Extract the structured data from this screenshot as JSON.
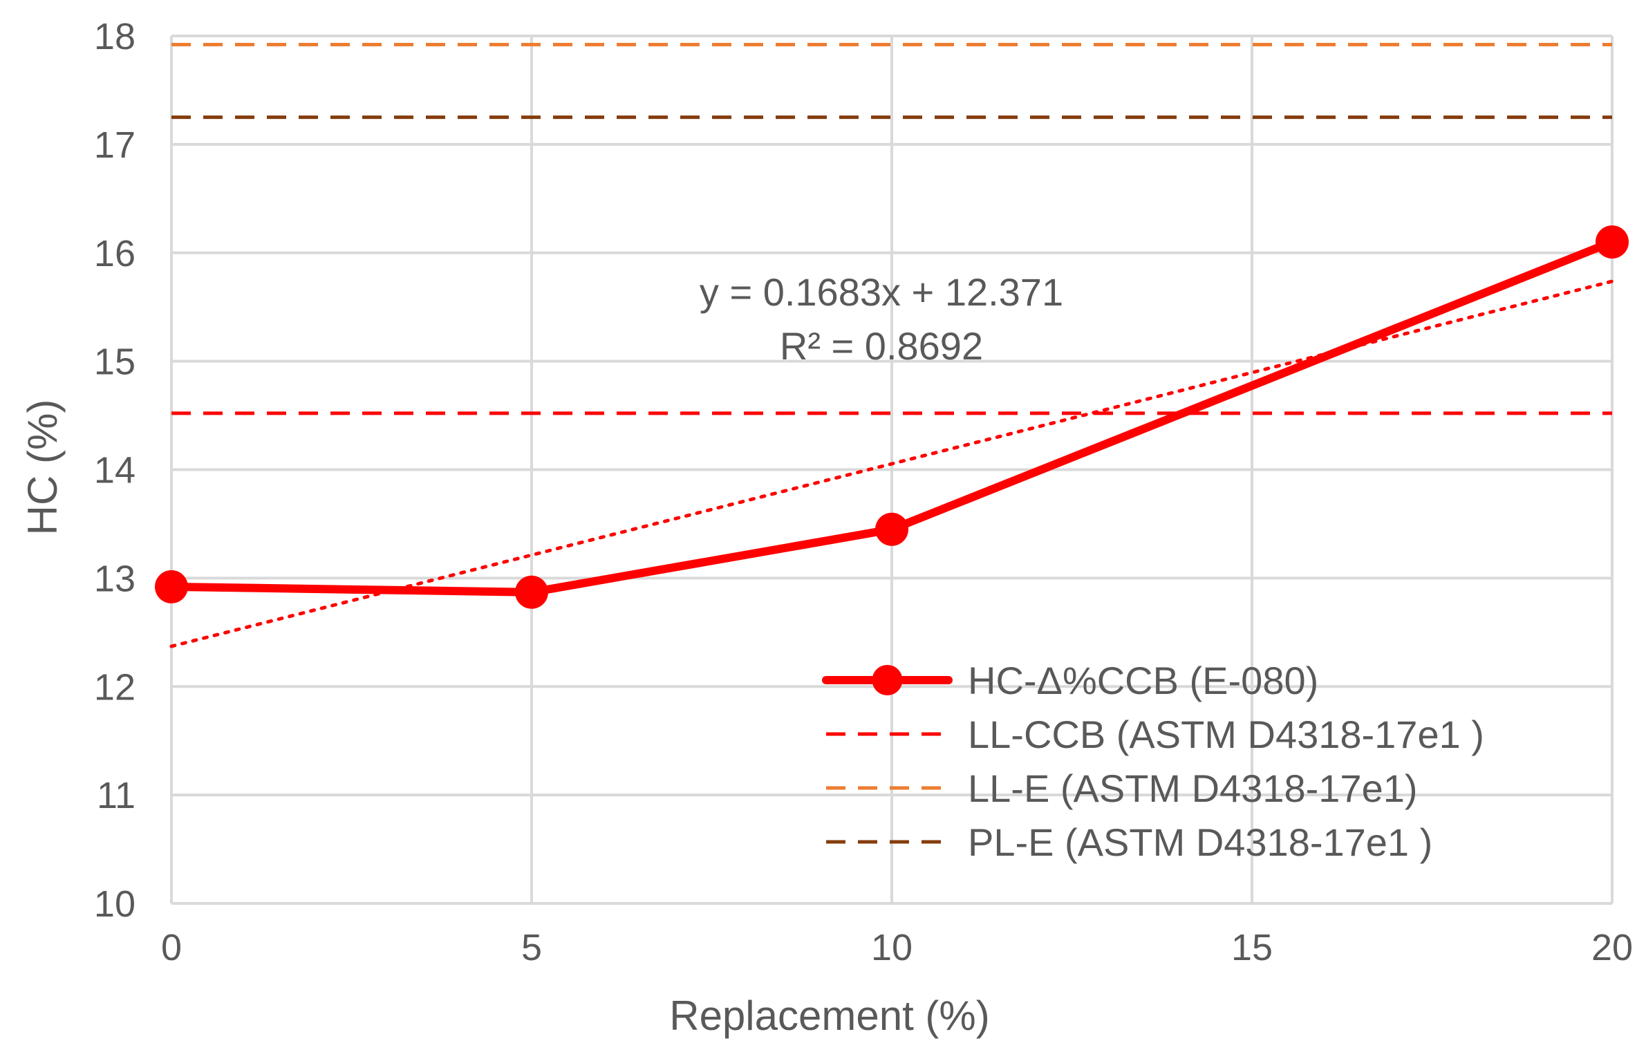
{
  "chart_data": {
    "type": "line",
    "title": "",
    "xlabel": "Replacement (%)",
    "ylabel": "HC (%)",
    "xlim": [
      0,
      20
    ],
    "ylim": [
      10,
      18
    ],
    "xticks": [
      0,
      5,
      10,
      15,
      20
    ],
    "yticks": [
      10,
      11,
      12,
      13,
      14,
      15,
      16,
      17,
      18
    ],
    "grid": true,
    "legend_position": "bottom-right",
    "series": [
      {
        "name": "HC-Δ%CCB (E-080)",
        "style": "solid-markers",
        "color": "#ff0000",
        "x": [
          0,
          5,
          10,
          20
        ],
        "y": [
          12.92,
          12.87,
          13.45,
          16.1
        ]
      },
      {
        "name": "LL-CCB (ASTM D4318-17e1 )",
        "style": "dashed-horizontal",
        "color": "#ff0000",
        "y": 14.52
      },
      {
        "name": "LL-E (ASTM D4318-17e1)",
        "style": "dashed-horizontal",
        "color": "#ed7d31",
        "y": 17.92
      },
      {
        "name": "PL-E (ASTM D4318-17e1 )",
        "style": "dashed-horizontal",
        "color": "#843c0c",
        "y": 17.25
      }
    ],
    "trendline": {
      "style": "dotted",
      "color": "#ff0000",
      "slope": 0.1683,
      "intercept": 12.371,
      "equation": "y = 0.1683x + 12.371",
      "r2": "R² = 0.8692"
    }
  }
}
